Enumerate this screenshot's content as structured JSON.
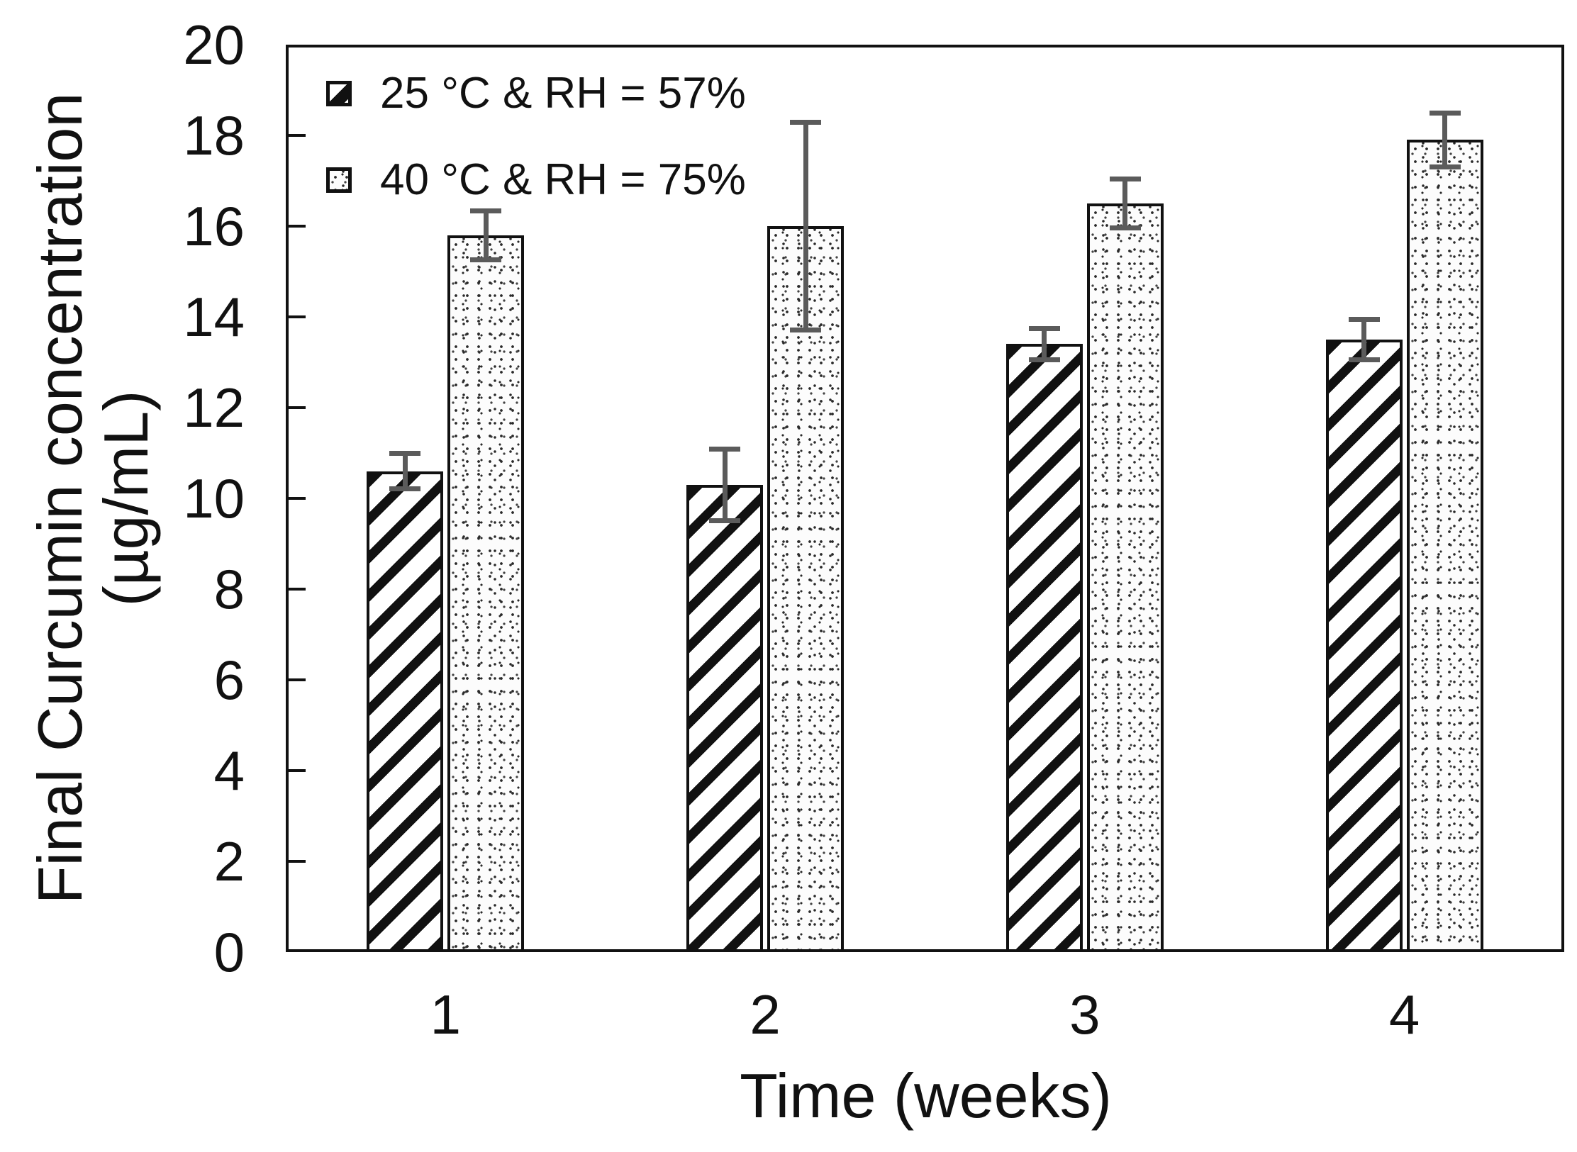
{
  "chart_data": {
    "type": "bar",
    "title": "",
    "xlabel": "Time (weeks)",
    "ylabel": "Final Curcumin concentration (µg/mL)",
    "ylabel_lines": [
      "Final Curcumin concentration",
      "(µg/mL)"
    ],
    "categories": [
      "1",
      "2",
      "3",
      "4"
    ],
    "ylim": [
      0,
      20
    ],
    "y_ticks": [
      0,
      2,
      4,
      6,
      8,
      10,
      12,
      14,
      16,
      18,
      20
    ],
    "grid": false,
    "legend_position": "top-left",
    "series": [
      {
        "name": "25 °C & RH = 57%",
        "pattern": "diagonal-hatch",
        "values": [
          10.6,
          10.3,
          13.4,
          13.5
        ],
        "errors": [
          0.4,
          0.8,
          0.35,
          0.45
        ]
      },
      {
        "name": "40 °C & RH = 75%",
        "pattern": "stipple",
        "values": [
          15.8,
          16.0,
          16.5,
          17.9
        ],
        "errors": [
          0.55,
          2.3,
          0.55,
          0.6
        ]
      }
    ],
    "colors": {
      "bar_outline": "#111111",
      "hatch_stripe": "#111111",
      "stipple_dot": "#2a2a2a",
      "error_bar": "#5b5b5b",
      "text": "#111111",
      "background": "#ffffff"
    }
  }
}
